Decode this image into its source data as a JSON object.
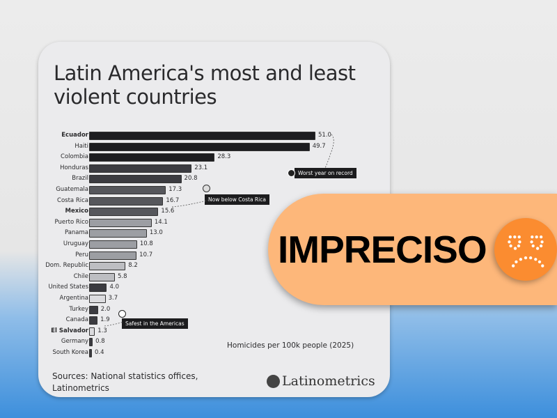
{
  "title": "Latin America's most and least violent countries",
  "chart_data": {
    "type": "bar",
    "orientation": "horizontal",
    "title": "Latin America's most and least violent countries",
    "xlabel": "Homicides per 100k people (2025)",
    "categories": [
      "Ecuador",
      "Haiti",
      "Colombia",
      "Honduras",
      "Brazil",
      "Guatemala",
      "Costa Rica",
      "Mexico",
      "Puerto Rico",
      "Panama",
      "Uruguay",
      "Peru",
      "Dom. Republic",
      "Chile",
      "United States",
      "Argentina",
      "Turkey",
      "Canada",
      "El Salvador",
      "Germany",
      "South Korea"
    ],
    "values": [
      51.0,
      49.7,
      28.3,
      23.1,
      20.8,
      17.3,
      16.7,
      15.6,
      14.1,
      13.0,
      10.8,
      10.7,
      8.2,
      5.8,
      4.0,
      3.7,
      2.0,
      1.9,
      1.3,
      0.8,
      0.4
    ],
    "labels": [
      "51.0",
      "49.7",
      "28.3",
      "23.1",
      "20.8",
      "17.3",
      "16.7",
      "15.6",
      "14.1",
      "13.0",
      "10.8",
      "10.7",
      "8.2",
      "5.8",
      "4.0",
      "3.7",
      "2.0",
      "1.9",
      "1.3",
      "0.8",
      "0.4"
    ],
    "bold": [
      "Ecuador",
      "Mexico",
      "El Salvador"
    ],
    "colors": [
      "#1d1d20",
      "#1d1d20",
      "#1d1d20",
      "#3b3b40",
      "#3b3b40",
      "#56575c",
      "#56575c",
      "#56575c",
      "#9c9ea3",
      "#9c9ea3",
      "#9c9ea3",
      "#9c9ea3",
      "#bdbec2",
      "#bdbec2",
      "#3b3b40",
      "#dcdcdf",
      "#3b3b40",
      "#3b3b40",
      "#dcdcdf",
      "#3b3b40",
      "#3b3b40"
    ],
    "annotations": [
      {
        "target": "Ecuador",
        "text": "Worst year on record"
      },
      {
        "target": "Mexico",
        "text": "Now below Costa Rica"
      },
      {
        "target": "El Salvador",
        "text": "Safest in the Americas"
      }
    ],
    "xlim": [
      0,
      51
    ]
  },
  "sources": "Sources: National statistics offices, Latinometrics",
  "brand": "Latinometrics",
  "badge": {
    "label": "IMPRECISO",
    "color": "#fdb77a",
    "face_color": "#fb8c30"
  }
}
